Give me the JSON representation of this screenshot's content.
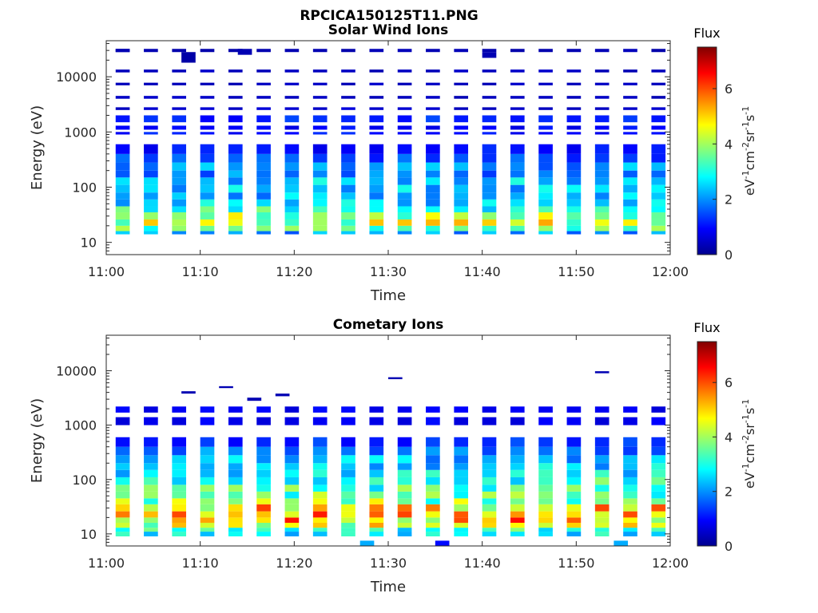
{
  "figure_title": "RPCICA150125T11.PNG",
  "colors": {
    "colormap": [
      "#00008f",
      "#0000ff",
      "#00ffff",
      "#ffff00",
      "#ff0000",
      "#800000"
    ],
    "axis": "#262626",
    "background": "#ffffff"
  },
  "chart_data": [
    {
      "type": "heatmap",
      "title": "Solar Wind Ions",
      "xlabel": "Time",
      "ylabel": "Energy (eV)",
      "y_scale": "log",
      "xlim": [
        "11:00",
        "12:00"
      ],
      "ylim": [
        6,
        45000
      ],
      "x_ticks": [
        "11:00",
        "11:10",
        "11:20",
        "11:30",
        "11:40",
        "11:50",
        "12:00"
      ],
      "y_ticks": [
        10,
        100,
        1000,
        10000
      ],
      "y_tick_labels": [
        "10",
        "100",
        "1000",
        "10000"
      ],
      "colorbar": {
        "label": "Flux",
        "units": "eV-1cm-2sr-1s-1",
        "range": [
          0,
          7.5
        ],
        "ticks": [
          0,
          2,
          4,
          6
        ]
      },
      "grid": false,
      "sweeps_start": [
        "11:01:00",
        "11:04:00",
        "11:07:00",
        "11:10:00",
        "11:13:00",
        "11:16:00",
        "11:19:00",
        "11:22:00",
        "11:25:00",
        "11:28:00",
        "11:31:00",
        "11:34:00",
        "11:37:00",
        "11:40:00",
        "11:43:00",
        "11:46:00",
        "11:49:00",
        "11:52:00",
        "11:55:00",
        "11:58:00"
      ],
      "sweep_duration_min": 1.5,
      "energy_profile": [
        {
          "e_low": 14,
          "e_high": 16,
          "flux": 2.0
        },
        {
          "e_low": 16,
          "e_high": 20,
          "flux": 3.3
        },
        {
          "e_low": 20,
          "e_high": 26,
          "flux": 4.2
        },
        {
          "e_low": 26,
          "e_high": 35,
          "flux": 4.0
        },
        {
          "e_low": 35,
          "e_high": 45,
          "flux": 3.0
        },
        {
          "e_low": 45,
          "e_high": 60,
          "flux": 2.4
        },
        {
          "e_low": 60,
          "e_high": 80,
          "flux": 2.2
        },
        {
          "e_low": 80,
          "e_high": 110,
          "flux": 2.3
        },
        {
          "e_low": 110,
          "e_high": 150,
          "flux": 2.4
        },
        {
          "e_low": 150,
          "e_high": 200,
          "flux": 1.8
        },
        {
          "e_low": 200,
          "e_high": 280,
          "flux": 2.0
        },
        {
          "e_low": 280,
          "e_high": 400,
          "flux": 1.4
        },
        {
          "e_low": 400,
          "e_high": 600,
          "flux": 1.0
        },
        {
          "e_low": 900,
          "e_high": 1000,
          "flux": 1.0
        },
        {
          "e_low": 1100,
          "e_high": 1300,
          "flux": 0.9
        },
        {
          "e_low": 1500,
          "e_high": 2000,
          "flux": 1.2
        },
        {
          "e_low": 2500,
          "e_high": 2800,
          "flux": 0.5
        },
        {
          "e_low": 4000,
          "e_high": 4500,
          "flux": 0.4
        },
        {
          "e_low": 7000,
          "e_high": 7800,
          "flux": 0.4
        },
        {
          "e_low": 12000,
          "e_high": 13500,
          "flux": 0.4
        },
        {
          "e_low": 28000,
          "e_high": 32000,
          "flux": 0.3
        }
      ],
      "sparse_lines": [
        {
          "time": "11:01:00",
          "e_low": 28000,
          "e_high": 32000,
          "flux": 0.3
        },
        {
          "time": "11:08:00",
          "e_low": 18000,
          "e_high": 28000,
          "flux": 0.2
        },
        {
          "time": "11:14:00",
          "e_low": 25000,
          "e_high": 32000,
          "flux": 0.3
        },
        {
          "time": "11:40:00",
          "e_low": 22000,
          "e_high": 28000,
          "flux": 0.3
        }
      ]
    },
    {
      "type": "heatmap",
      "title": "Cometary Ions",
      "xlabel": "Time",
      "ylabel": "Energy (eV)",
      "y_scale": "log",
      "xlim": [
        "11:00",
        "12:00"
      ],
      "ylim": [
        6,
        45000
      ],
      "x_ticks": [
        "11:00",
        "11:10",
        "11:20",
        "11:30",
        "11:40",
        "11:50",
        "12:00"
      ],
      "y_ticks": [
        10,
        100,
        1000,
        10000
      ],
      "y_tick_labels": [
        "10",
        "100",
        "1000",
        "10000"
      ],
      "colorbar": {
        "label": "Flux",
        "units": "eV-1cm-2sr-1s-1",
        "range": [
          0,
          7.5
        ],
        "ticks": [
          0,
          2,
          4,
          6
        ]
      },
      "grid": false,
      "sweeps_start": [
        "11:01:00",
        "11:04:00",
        "11:07:00",
        "11:10:00",
        "11:13:00",
        "11:16:00",
        "11:19:00",
        "11:22:00",
        "11:25:00",
        "11:28:00",
        "11:31:00",
        "11:34:00",
        "11:37:00",
        "11:40:00",
        "11:43:00",
        "11:46:00",
        "11:49:00",
        "11:52:00",
        "11:55:00",
        "11:58:00"
      ],
      "sweep_duration_min": 1.5,
      "energy_profile": [
        {
          "e_low": 9,
          "e_high": 11,
          "flux": 2.6
        },
        {
          "e_low": 11,
          "e_high": 13,
          "flux": 3.0
        },
        {
          "e_low": 13,
          "e_high": 16,
          "flux": 4.4
        },
        {
          "e_low": 16,
          "e_high": 20,
          "flux": 5.0
        },
        {
          "e_low": 20,
          "e_high": 26,
          "flux": 5.6
        },
        {
          "e_low": 26,
          "e_high": 35,
          "flux": 4.8
        },
        {
          "e_low": 35,
          "e_high": 45,
          "flux": 3.8
        },
        {
          "e_low": 45,
          "e_high": 60,
          "flux": 3.4
        },
        {
          "e_low": 60,
          "e_high": 80,
          "flux": 3.2
        },
        {
          "e_low": 80,
          "e_high": 110,
          "flux": 3.0
        },
        {
          "e_low": 110,
          "e_high": 150,
          "flux": 2.6
        },
        {
          "e_low": 150,
          "e_high": 200,
          "flux": 2.4
        },
        {
          "e_low": 200,
          "e_high": 280,
          "flux": 2.2
        },
        {
          "e_low": 280,
          "e_high": 400,
          "flux": 1.8
        },
        {
          "e_low": 400,
          "e_high": 600,
          "flux": 1.2
        },
        {
          "e_low": 1000,
          "e_high": 1400,
          "flux": 0.8
        },
        {
          "e_low": 1700,
          "e_high": 2200,
          "flux": 0.8
        }
      ],
      "sparse_lines": [
        {
          "time": "11:08:00",
          "e_low": 3800,
          "e_high": 4200,
          "flux": 0.3
        },
        {
          "time": "11:12:00",
          "e_low": 4800,
          "e_high": 5200,
          "flux": 0.3
        },
        {
          "time": "11:15:00",
          "e_low": 2800,
          "e_high": 3200,
          "flux": 0.3
        },
        {
          "time": "11:18:00",
          "e_low": 3400,
          "e_high": 3800,
          "flux": 0.3
        },
        {
          "time": "11:30:00",
          "e_low": 7000,
          "e_high": 7600,
          "flux": 0.3
        },
        {
          "time": "11:52:00",
          "e_low": 9000,
          "e_high": 9800,
          "flux": 0.3
        },
        {
          "time": "11:54:00",
          "e_low": 6,
          "e_high": 7.5,
          "flux": 2.2
        },
        {
          "time": "11:35:00",
          "e_low": 6,
          "e_high": 7.5,
          "flux": 1.0
        },
        {
          "time": "11:27:00",
          "e_low": 6,
          "e_high": 7.5,
          "flux": 2.2
        }
      ]
    }
  ]
}
